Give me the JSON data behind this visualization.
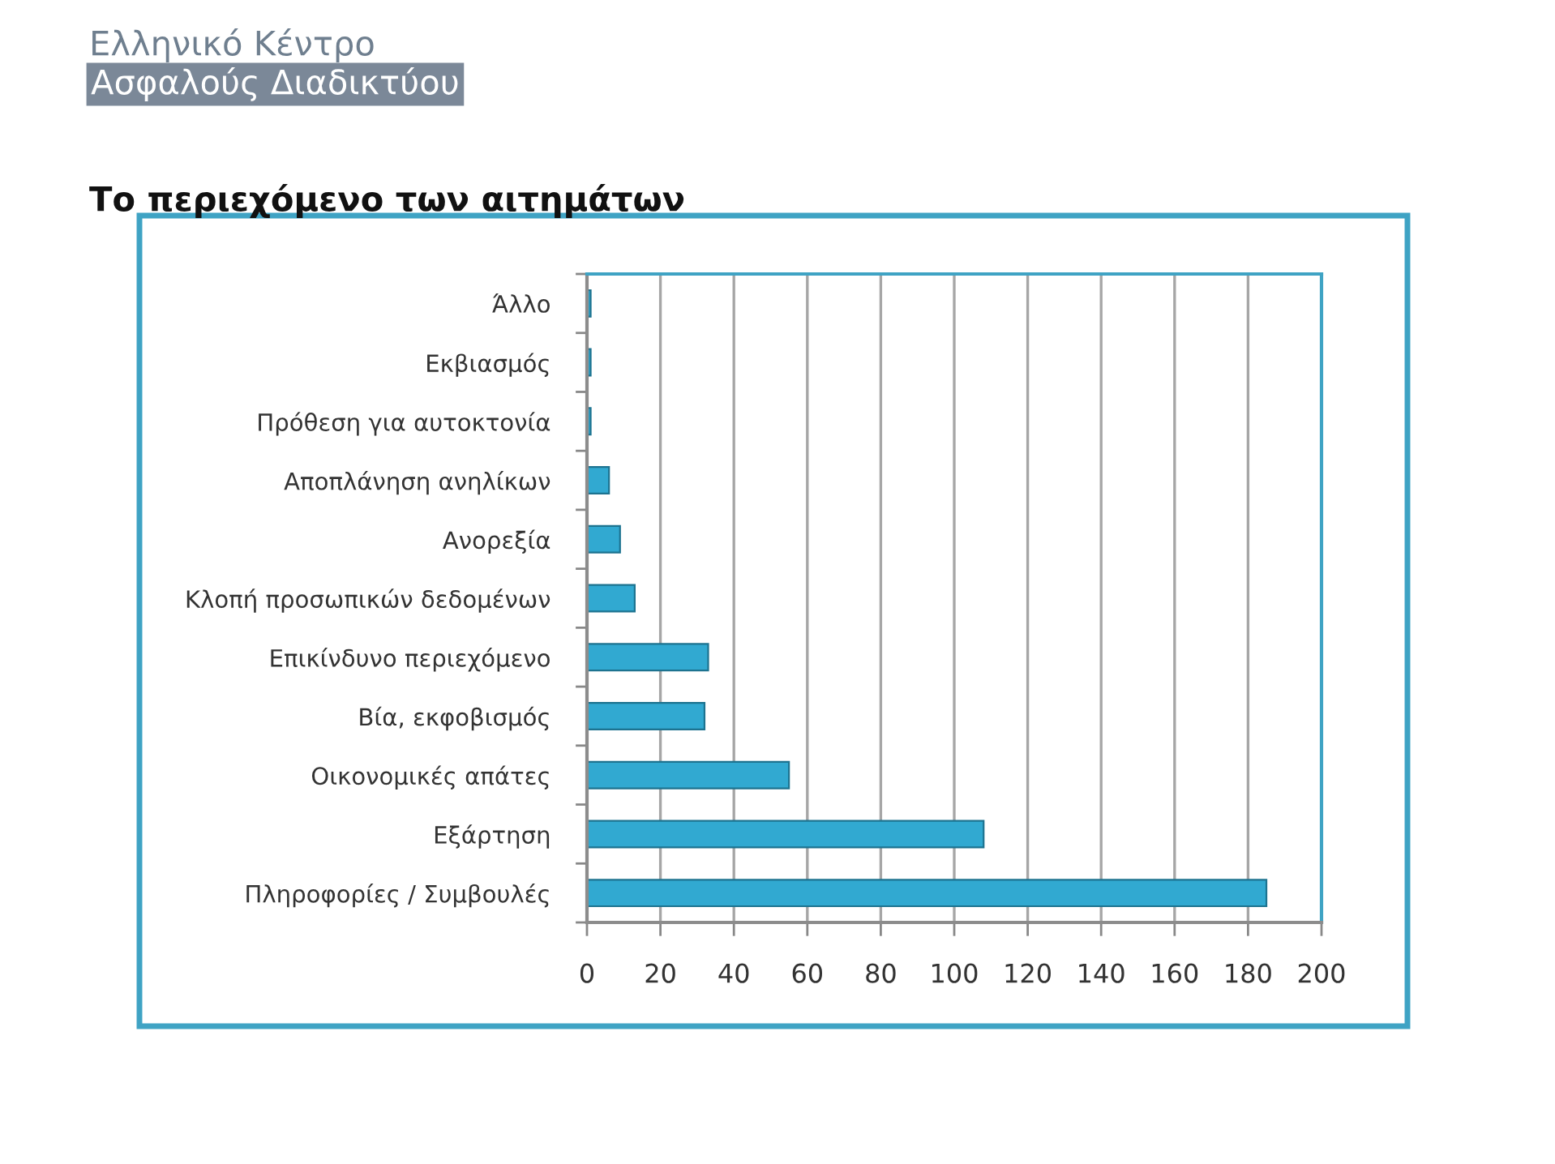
{
  "chart_data": {
    "type": "bar",
    "orientation": "horizontal",
    "title": "Το περιεχόμενο των αιτημάτων",
    "annotations": [
      "Ελληνικό Κέντρο",
      "Ασφαλούς Διαδικτύου"
    ],
    "categories": [
      "Άλλο",
      "Εκβιασμός",
      "Πρόθεση για αυτοκτονία",
      "Αποπλάνηση ανηλίκων",
      "Ανορεξία",
      "Κλοπή προσωπικών δεδομένων",
      "Επικίνδυνο περιεχόμενο",
      "Βία, εκφοβισμός",
      "Οικονομικές απάτες",
      "Εξάρτηση",
      "Πληροφορίες / Συμβουλές"
    ],
    "values": [
      1,
      1,
      1,
      6,
      9,
      13,
      33,
      32,
      55,
      108,
      185
    ],
    "color": "#31a9d1",
    "xlim": [
      0,
      200
    ],
    "xticks": [
      0,
      20,
      40,
      60,
      80,
      100,
      120,
      140,
      160,
      180,
      200
    ],
    "grid": "x"
  }
}
